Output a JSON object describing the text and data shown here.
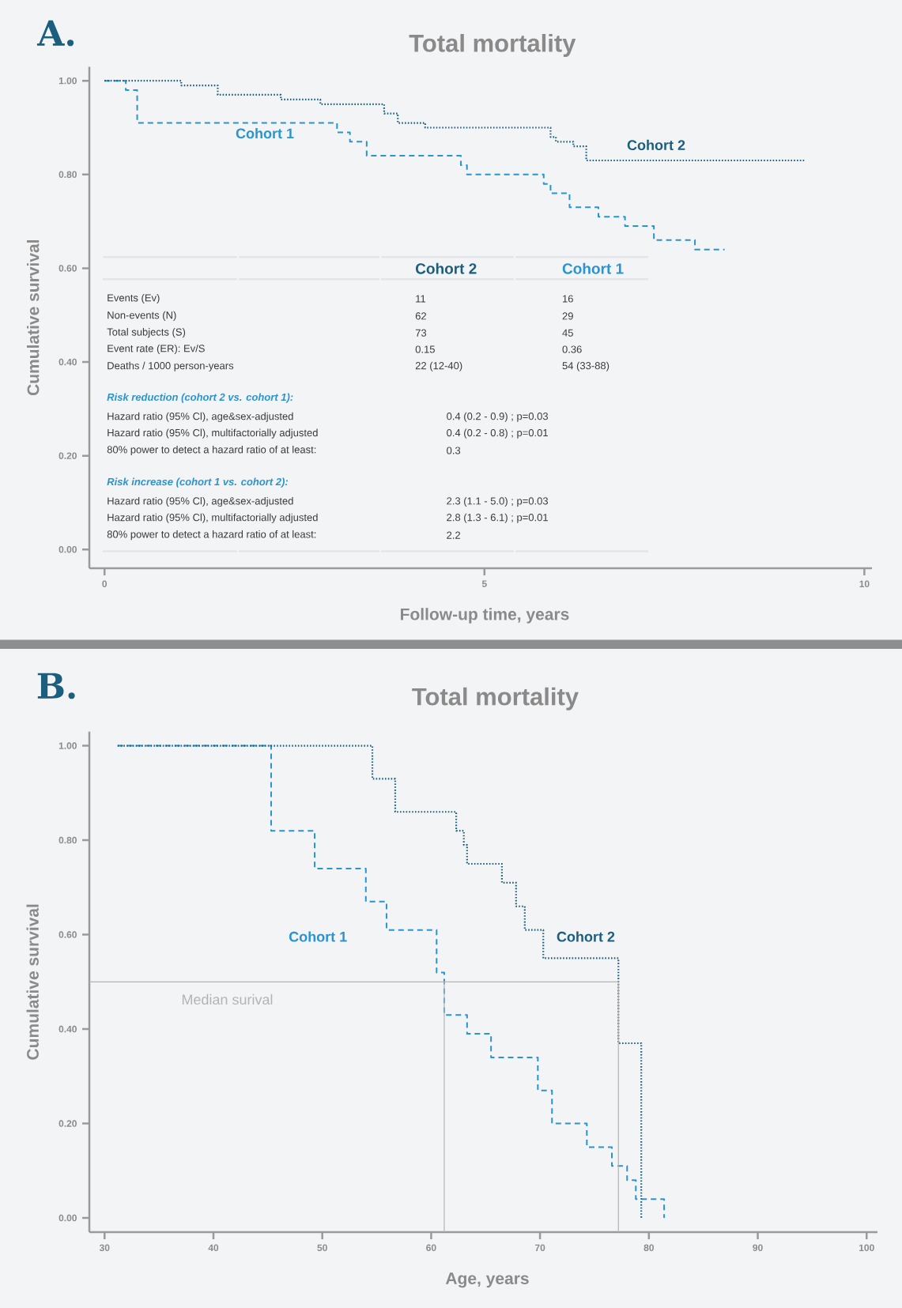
{
  "chart_data": [
    {
      "type": "step",
      "title": "Total mortality",
      "xlabel": "Follow-up time, years",
      "ylabel": "Cumulative survival",
      "xlim": [
        -0.2,
        10.1
      ],
      "ylim": [
        -0.04,
        1.03
      ],
      "xticks": [
        0,
        5,
        10
      ],
      "yticks": [
        {
          "value": 0,
          "label": "0.00"
        },
        {
          "value": 0.2,
          "label": "0.20"
        },
        {
          "value": 0.4,
          "label": "0.40"
        },
        {
          "value": 0.6,
          "label": "0.60"
        },
        {
          "value": 0.8,
          "label": "0.80"
        },
        {
          "value": 1,
          "label": "1.00"
        }
      ],
      "series": [
        {
          "name": "Cohort 1",
          "color": "#2a93d0",
          "line_style": "dashed",
          "x": [
            0,
            0.28,
            0.43,
            3.06,
            3.23,
            3.45,
            4.69,
            4.77,
            5.78,
            5.87,
            6.12,
            6.5,
            6.85,
            7.23,
            7.77,
            8.16
          ],
          "values": [
            1,
            0.98,
            0.91,
            0.89,
            0.87,
            0.84,
            0.82,
            0.8,
            0.78,
            0.76,
            0.73,
            0.71,
            0.69,
            0.66,
            0.64,
            0.64
          ]
        },
        {
          "name": "Cohort 2",
          "color": "#1b5e7e",
          "line_style": "dotted",
          "x": [
            0,
            1.01,
            1.49,
            2.32,
            2.84,
            3.68,
            3.86,
            4.22,
            5.87,
            5.94,
            6.17,
            6.34,
            9.21
          ],
          "values": [
            1,
            0.99,
            0.97,
            0.96,
            0.95,
            0.93,
            0.91,
            0.9,
            0.88,
            0.87,
            0.86,
            0.83,
            0.83
          ]
        }
      ],
      "annotations": [
        "A.",
        "Cohort 2",
        "Cohort 1",
        "Events (Ev)",
        "11",
        "16",
        "Non-events (N)",
        "62",
        "29",
        "Total subjects (S)",
        "73",
        "45",
        "Event rate (ER): Ev/S",
        "0.15",
        "0.36",
        "Deaths / 1000 person-years",
        "22 (12-40)",
        "54 (33-88)",
        "Risk reduction (cohort 2 vs. cohort 1):",
        "Hazard ratio (95% Cl), age&sex-adjusted",
        "0.4 (0.2 - 0.9) ; p=0.03",
        "Hazard ratio (95% Cl), multifactorially adjusted",
        "0.4 (0.2 - 0.8) ; p=0.01",
        "80% power to detect a hazard ratio of at least:",
        "0.3",
        "Risk increase (cohort 1 vs. cohort 2):",
        "Hazard ratio (95% Cl), age&sex-adjusted",
        "2.3 (1.1 - 5.0) ; p=0.03",
        "Hazard ratio (95% Cl), multifactorially adjusted",
        "2.8 (1.3 - 6.1) ; p=0.01",
        "80% power to detect a hazard ratio of at least:",
        "2.2"
      ]
    },
    {
      "type": "step",
      "title": "Total mortality",
      "xlabel": "Age, years",
      "ylabel": "Cumulative survival",
      "xlim": [
        28.6,
        101
      ],
      "ylim": [
        -0.03,
        1.03
      ],
      "xticks": [
        30,
        40,
        50,
        60,
        70,
        80,
        90,
        100
      ],
      "yticks": [
        {
          "value": 0,
          "label": "0.00"
        },
        {
          "value": 0.2,
          "label": "0.20"
        },
        {
          "value": 0.4,
          "label": "0.40"
        },
        {
          "value": 0.6,
          "label": "0.60"
        },
        {
          "value": 0.8,
          "label": "0.80"
        },
        {
          "value": 1,
          "label": "1.00"
        }
      ],
      "series": [
        {
          "name": "Cohort 1",
          "color": "#2a93d0",
          "line_style": "dashed",
          "x": [
            31.2,
            45.3,
            49.3,
            54.0,
            55.9,
            60.5,
            61.2,
            63.3,
            65.5,
            69.8,
            71.1,
            74.3,
            76.6,
            78.0,
            78.8,
            81.4
          ],
          "values": [
            1,
            0.82,
            0.74,
            0.67,
            0.61,
            0.52,
            0.43,
            0.39,
            0.34,
            0.27,
            0.2,
            0.15,
            0.11,
            0.08,
            0.04,
            0
          ]
        },
        {
          "name": "Cohort 2",
          "color": "#1b5e7e",
          "line_style": "dotted",
          "x": [
            31.2,
            54.6,
            56.7,
            62.3,
            63.0,
            63.3,
            66.5,
            67.8,
            68.6,
            70.3,
            77.2,
            79.3
          ],
          "values": [
            1,
            0.93,
            0.86,
            0.82,
            0.79,
            0.75,
            0.71,
            0.66,
            0.61,
            0.55,
            0.37,
            0
          ]
        }
      ],
      "ref_lines": [
        {
          "axis": "y",
          "value": 0.5,
          "label": "Median surival",
          "color": "#b3b3b3"
        },
        {
          "axis": "x",
          "value": 61.2,
          "color": "#b3b3b3"
        },
        {
          "axis": "x",
          "value": 77.2,
          "color": "#b3b3b3"
        }
      ],
      "annotations": [
        "B."
      ]
    }
  ]
}
